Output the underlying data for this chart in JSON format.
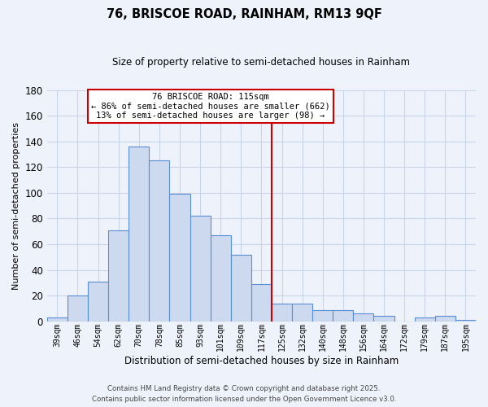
{
  "title": "76, BRISCOE ROAD, RAINHAM, RM13 9QF",
  "subtitle": "Size of property relative to semi-detached houses in Rainham",
  "xlabel": "Distribution of semi-detached houses by size in Rainham",
  "ylabel": "Number of semi-detached properties",
  "bar_color": "#ccd9ee",
  "bar_edge_color": "#5b8fd4",
  "background_color": "#eef2fb",
  "grid_color": "#c8d4e8",
  "annotation_box_color": "#ffffff",
  "annotation_border_color": "#cc0000",
  "vline_color": "#cc0000",
  "categories": [
    "39sqm",
    "46sqm",
    "54sqm",
    "62sqm",
    "70sqm",
    "78sqm",
    "85sqm",
    "93sqm",
    "101sqm",
    "109sqm",
    "117sqm",
    "125sqm",
    "132sqm",
    "140sqm",
    "148sqm",
    "156sqm",
    "164sqm",
    "172sqm",
    "179sqm",
    "187sqm",
    "195sqm"
  ],
  "values": [
    3,
    20,
    31,
    71,
    136,
    125,
    99,
    82,
    67,
    52,
    29,
    14,
    14,
    9,
    9,
    6,
    4,
    0,
    3,
    4,
    1
  ],
  "ylim": [
    0,
    180
  ],
  "yticks": [
    0,
    20,
    40,
    60,
    80,
    100,
    120,
    140,
    160,
    180
  ],
  "vline_position": 10.5,
  "annotation_title": "76 BRISCOE ROAD: 115sqm",
  "annotation_line1": "← 86% of semi-detached houses are smaller (662)",
  "annotation_line2": "13% of semi-detached houses are larger (98) →",
  "footer_line1": "Contains HM Land Registry data © Crown copyright and database right 2025.",
  "footer_line2": "Contains public sector information licensed under the Open Government Licence v3.0."
}
